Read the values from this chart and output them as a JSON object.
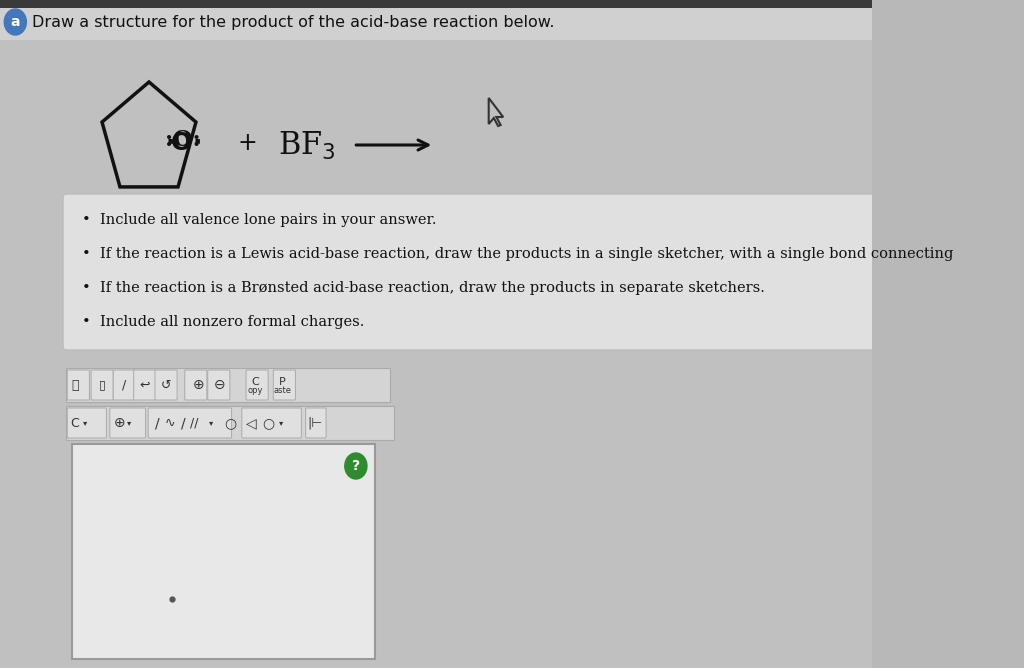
{
  "title": "Draw a structure for the product of the acid-base reaction below.",
  "circle_label": "a",
  "circle_color": "#555555",
  "background_color": "#b8b8b8",
  "molecule_O_label": ":O:",
  "plus_sign": "+",
  "arrow_color": "#111111",
  "instructions": [
    "Include all valence lone pairs in your answer.",
    "If the reaction is a Lewis acid-base reaction, draw the products in a single sketcher, with a single bond connecting",
    "If the reaction is a Brønsted acid-base reaction, draw the products in separate sketchers.",
    "Include all nonzero formal charges."
  ],
  "instruction_box_color": "#e0e0e0",
  "pentagon_color": "#111111",
  "toolbar_bg": "#d8d8d8",
  "toolbar_border": "#b0b0b0",
  "sketch_area_bg": "#e8e8e8",
  "sketch_area_border": "#999999",
  "green_button_color": "#2e8b2e",
  "top_bar_color": "#3a3a3a",
  "header_bg": "#d0d0d0"
}
